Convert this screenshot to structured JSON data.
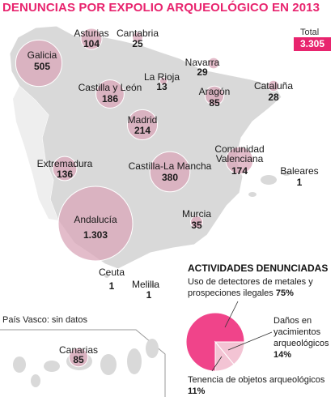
{
  "title": "DENUNCIAS POR EXPOLIO ARQUEOLÓGICO EN 2013",
  "total": {
    "label": "Total",
    "value": "3.305"
  },
  "note": "País Vasco: sin datos",
  "colors": {
    "accent": "#e8246e",
    "bubble": "#d9a6b8",
    "land": "#d9d9d9",
    "pie_main": "#f0448a",
    "pie_light": "#f3c4d4"
  },
  "chart_data": [
    {
      "type": "bubble-map",
      "title": "DENUNCIAS POR EXPOLIO ARQUEOLÓGICO EN 2013",
      "regions": [
        {
          "name": "Galicia",
          "value": 505,
          "value_label": "505"
        },
        {
          "name": "Asturias",
          "value": 104,
          "value_label": "104"
        },
        {
          "name": "Cantabria",
          "value": 25,
          "value_label": "25"
        },
        {
          "name": "Navarra",
          "value": 29,
          "value_label": "29"
        },
        {
          "name": "La Rioja",
          "value": 13,
          "value_label": "13"
        },
        {
          "name": "Aragón",
          "value": 85,
          "value_label": "85"
        },
        {
          "name": "Cataluña",
          "value": 28,
          "value_label": "28"
        },
        {
          "name": "Castilla y León",
          "value": 186,
          "value_label": "186"
        },
        {
          "name": "Madrid",
          "value": 214,
          "value_label": "214"
        },
        {
          "name": "Extremadura",
          "value": 136,
          "value_label": "136"
        },
        {
          "name": "Castilla-La Mancha",
          "value": 380,
          "value_label": "380"
        },
        {
          "name": "Comunidad Valenciana",
          "value": 174,
          "value_label": "174"
        },
        {
          "name": "Baleares",
          "value": 1,
          "value_label": "1"
        },
        {
          "name": "Andalucía",
          "value": 1303,
          "value_label": "1.303"
        },
        {
          "name": "Murcia",
          "value": 35,
          "value_label": "35"
        },
        {
          "name": "Ceuta",
          "value": 1,
          "value_label": "1"
        },
        {
          "name": "Melilla",
          "value": 1,
          "value_label": "1"
        },
        {
          "name": "Canarias",
          "value": 85,
          "value_label": "85"
        }
      ]
    },
    {
      "type": "pie",
      "title": "ACTIVIDADES DENUNCIADAS",
      "slices": [
        {
          "name": "Uso de detectores de metales y prospeciones ilegales",
          "value": 75,
          "value_label": "75%"
        },
        {
          "name": "Daños en yacimientos arqueológicos",
          "value": 14,
          "value_label": "14%"
        },
        {
          "name": "Tenencia de objetos arqueológicos",
          "value": 11,
          "value_label": "11%"
        }
      ]
    }
  ]
}
